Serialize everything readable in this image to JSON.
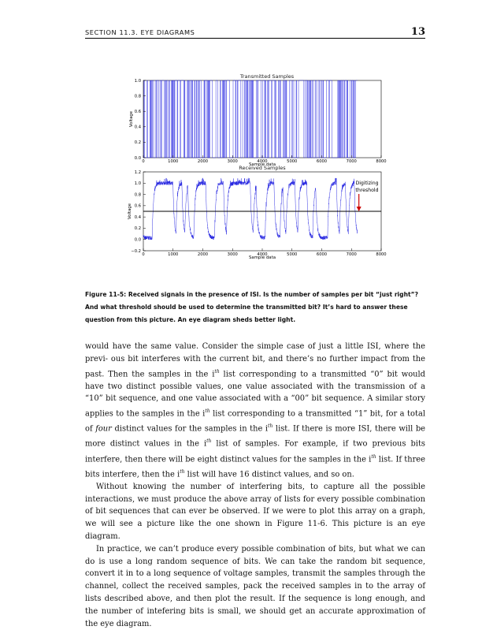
{
  "header": {
    "section": "SECTION 11.3.  EYE DIAGRAMS",
    "page_number": "13"
  },
  "figure": {
    "caption": "Figure 11-5: Received signals in the presence of ISI. Is the number of samples per bit “just right”? And what threshold should be used to determine the transmitted bit? It’s hard to answer these question from this picture. An eye diagram sheds better light.",
    "annotation": [
      "Digitizing",
      "threshold"
    ]
  },
  "chart_data": [
    {
      "type": "line",
      "title": "Transmitted Samples",
      "xlabel": "Sample data",
      "ylabel": "Voltage",
      "xlim": [
        0,
        8000
      ],
      "ylim": [
        0.0,
        1.0
      ],
      "xticks": [
        "0",
        "1000",
        "2000",
        "3000",
        "4000",
        "5000",
        "6000",
        "7000",
        "8000"
      ],
      "yticks": [
        "0.0",
        "0.2",
        "0.4",
        "0.6",
        "0.8",
        "1.0"
      ],
      "x_end": 7200,
      "samples_per_bit": 20,
      "levels": [
        0,
        1
      ],
      "color": "#2020e0"
    },
    {
      "type": "line",
      "title": "Received Samples",
      "xlabel": "Sample data",
      "ylabel": "Voltage",
      "xlim": [
        0,
        8000
      ],
      "ylim": [
        -0.2,
        1.2
      ],
      "xticks": [
        "0",
        "1000",
        "2000",
        "3000",
        "4000",
        "5000",
        "6000",
        "7000",
        "8000"
      ],
      "yticks": [
        "−0.2",
        "0.0",
        "0.2",
        "0.4",
        "0.6",
        "0.8",
        "1.0",
        "1.2"
      ],
      "x_end": 7200,
      "threshold": 0.5,
      "arrow_x": 7250,
      "color": "#2020e0"
    }
  ],
  "body": {
    "p1": [
      "would have the same value. Consider the simple case of just a little ISI, where the previ-",
      "ous bit interferes with the current bit, and there’s no further impact from the past. Then",
      "the samples in the i",
      "th",
      " list corresponding to a transmitted “0” bit would have two distinct",
      "possible values, one value associated with the transmission of a “10” bit sequence, and one",
      "value associated with a “00” bit sequence. A similar story applies to the samples in the i",
      "th",
      "list corresponding to a transmitted “1” bit, for a total of ",
      "four",
      " distinct values for the samples",
      "in the i",
      "th",
      " list. If there is more ISI, there will be more distinct values in the i",
      "th",
      " list of samples.",
      "For example, if two previous bits interfere, then there will be eight distinct values for the",
      "samples in the i",
      "th",
      " list. If three bits interfere, then the i",
      "th",
      " list will have 16 distinct values, and",
      "so on."
    ],
    "p2": "Without knowing the number of interfering bits, to capture all the possible interactions, we must produce the above array of lists for every possible combination of bit sequences that can ever be observed. If we were to plot this array on a graph, we will see a picture like the one shown in Figure 11-6. This picture is an eye diagram.",
    "p3": "In practice, we can’t produce every possible combination of bits, but what we can do is use a long random sequence of bits. We can take the random bit sequence, convert it in to a long sequence of voltage samples, transmit the samples through the channel, collect the received samples, pack the received samples in to the array of lists described above, and then plot the result. If the sequence is long enough, and the number of intefering bits is small, we should get an accurate approximation of the eye diagram."
  }
}
